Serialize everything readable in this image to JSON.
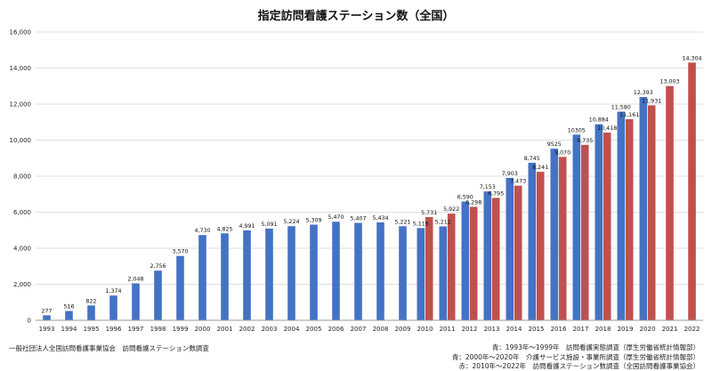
{
  "chart_data": {
    "type": "bar",
    "title": "指定訪問看護ステーション数（全国）",
    "ylim": [
      0,
      16000
    ],
    "yticks": [
      "0",
      "2,000",
      "4,000",
      "6,000",
      "8,000",
      "10,000",
      "12,000",
      "14,000",
      "16,000"
    ],
    "grid": true,
    "categories": [
      "1993",
      "1994",
      "1995",
      "1996",
      "1997",
      "1998",
      "1999",
      "2000",
      "2001",
      "2002",
      "2003",
      "2004",
      "2005",
      "2006",
      "2007",
      "2008",
      "2009",
      "2010",
      "2011",
      "2012",
      "2013",
      "2014",
      "2015",
      "2016",
      "2017",
      "2018",
      "2019",
      "2020",
      "2021",
      "2022"
    ],
    "series": [
      {
        "color": "#4472c4",
        "values": [
          277,
          516,
          822,
          1374,
          2048,
          2756,
          3570,
          4730,
          4825,
          4991,
          5091,
          5224,
          5309,
          5470,
          5407,
          5434,
          5221,
          5119,
          5212,
          6590,
          7153,
          7903,
          8745,
          9525,
          10305,
          10884,
          11580,
          12393,
          null,
          null
        ],
        "labels": [
          "277",
          "516",
          "822",
          "1,374",
          "2,048",
          "2,756",
          "3,570",
          "4,730",
          "4,825",
          "4,991",
          "5,091",
          "5,224",
          "5,309",
          "5,470",
          "5,407",
          "5,434",
          "5,221",
          "5,119",
          "5,212",
          "6,590",
          "7,153",
          "7,903",
          "8,745",
          "9525",
          "10305",
          "10,884",
          "11,580",
          "12,393",
          null,
          null
        ]
      },
      {
        "color": "#c0504d",
        "values": [
          null,
          null,
          null,
          null,
          null,
          null,
          null,
          null,
          null,
          null,
          null,
          null,
          null,
          null,
          null,
          null,
          null,
          5731,
          5922,
          6298,
          6795,
          7473,
          8241,
          9070,
          9735,
          10418,
          11161,
          11931,
          13003,
          14304
        ],
        "labels": [
          null,
          null,
          null,
          null,
          null,
          null,
          null,
          null,
          null,
          null,
          null,
          null,
          null,
          null,
          null,
          null,
          null,
          "5,731",
          "5,922",
          "6,298",
          "6,795",
          "7,473",
          "8,241",
          "9,070",
          "9,735",
          "10,418",
          "11,161",
          "11,931",
          "13,003",
          "14,304"
        ]
      }
    ]
  },
  "footer": {
    "source_left": "一般社団法人全国訪問看護事業協会　訪問看護ステーション数調査",
    "notes": [
      "青：1993年～1999年　訪問看護実態調査（厚生労働省統計情報部）",
      "青：2000年～2020年　介護サービス施設・事業所調査（厚生労働省統計情報部）",
      "赤：2010年～2022年　訪問看護ステーション数調査（全国訪問看護事業協会）"
    ]
  }
}
